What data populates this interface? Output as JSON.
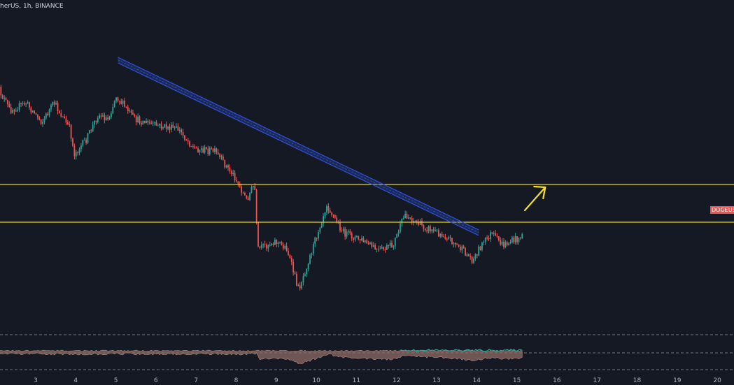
{
  "header": {
    "title": "herUS, 1h, BINANCE"
  },
  "price_tag": {
    "label": "DOGEUSDT"
  },
  "colors": {
    "background": "#151924",
    "up_candle": "#26a69a",
    "down_candle": "#ef5350",
    "support_resistance": "#e8d31c",
    "trend_channel": "#2f52d8",
    "arrow": "#f5e12a",
    "grid": "#9598a1"
  },
  "chart_data": {
    "type": "candlestick",
    "symbol_fragment": "herUS",
    "interval": "1h",
    "exchange": "BINANCE",
    "x_ticks": [
      "3",
      "4",
      "5",
      "6",
      "7",
      "8",
      "9",
      "10",
      "11",
      "12",
      "13",
      "14",
      "15",
      "16",
      "17",
      "18",
      "19",
      "20"
    ],
    "x_range": [
      2.05,
      20.1
    ],
    "price_range_note": "price axis not shown",
    "price_path_keyframes": [
      {
        "day": 2.05,
        "level": 0.155
      },
      {
        "day": 2.4,
        "level": 0.245
      },
      {
        "day": 2.8,
        "level": 0.22
      },
      {
        "day": 3.2,
        "level": 0.285
      },
      {
        "day": 3.5,
        "level": 0.22
      },
      {
        "day": 3.9,
        "level": 0.31
      },
      {
        "day": 4.0,
        "level": 0.395
      },
      {
        "day": 4.3,
        "level": 0.345
      },
      {
        "day": 4.6,
        "level": 0.26
      },
      {
        "day": 4.85,
        "level": 0.275
      },
      {
        "day": 5.05,
        "level": 0.195
      },
      {
        "day": 5.5,
        "level": 0.275
      },
      {
        "day": 6.0,
        "level": 0.295
      },
      {
        "day": 6.6,
        "level": 0.31
      },
      {
        "day": 7.0,
        "level": 0.375
      },
      {
        "day": 7.5,
        "level": 0.385
      },
      {
        "day": 8.0,
        "level": 0.47
      },
      {
        "day": 8.3,
        "level": 0.55
      },
      {
        "day": 8.5,
        "level": 0.495
      },
      {
        "day": 8.58,
        "level": 0.72
      },
      {
        "day": 9.0,
        "level": 0.69
      },
      {
        "day": 9.3,
        "level": 0.715
      },
      {
        "day": 9.6,
        "level": 0.855
      },
      {
        "day": 9.9,
        "level": 0.735
      },
      {
        "day": 10.3,
        "level": 0.565
      },
      {
        "day": 10.7,
        "level": 0.66
      },
      {
        "day": 11.2,
        "level": 0.69
      },
      {
        "day": 11.6,
        "level": 0.725
      },
      {
        "day": 11.95,
        "level": 0.705
      },
      {
        "day": 12.25,
        "level": 0.6
      },
      {
        "day": 12.7,
        "level": 0.64
      },
      {
        "day": 13.3,
        "level": 0.675
      },
      {
        "day": 13.95,
        "level": 0.755
      },
      {
        "day": 14.1,
        "level": 0.715
      },
      {
        "day": 14.4,
        "level": 0.665
      },
      {
        "day": 14.7,
        "level": 0.705
      },
      {
        "day": 15.15,
        "level": 0.675
      }
    ],
    "annotations": {
      "resistance_line": "horizontal",
      "support_line": "horizontal",
      "descending_channel": {
        "from_day": 5.05,
        "to_day": 14.05
      },
      "projection_arrow": {
        "from_day": 15.2,
        "to_day": 15.85,
        "direction": "up"
      }
    },
    "lower_indicator": {
      "type": "oscillator",
      "legend": "none",
      "reference_lines": 3
    }
  }
}
